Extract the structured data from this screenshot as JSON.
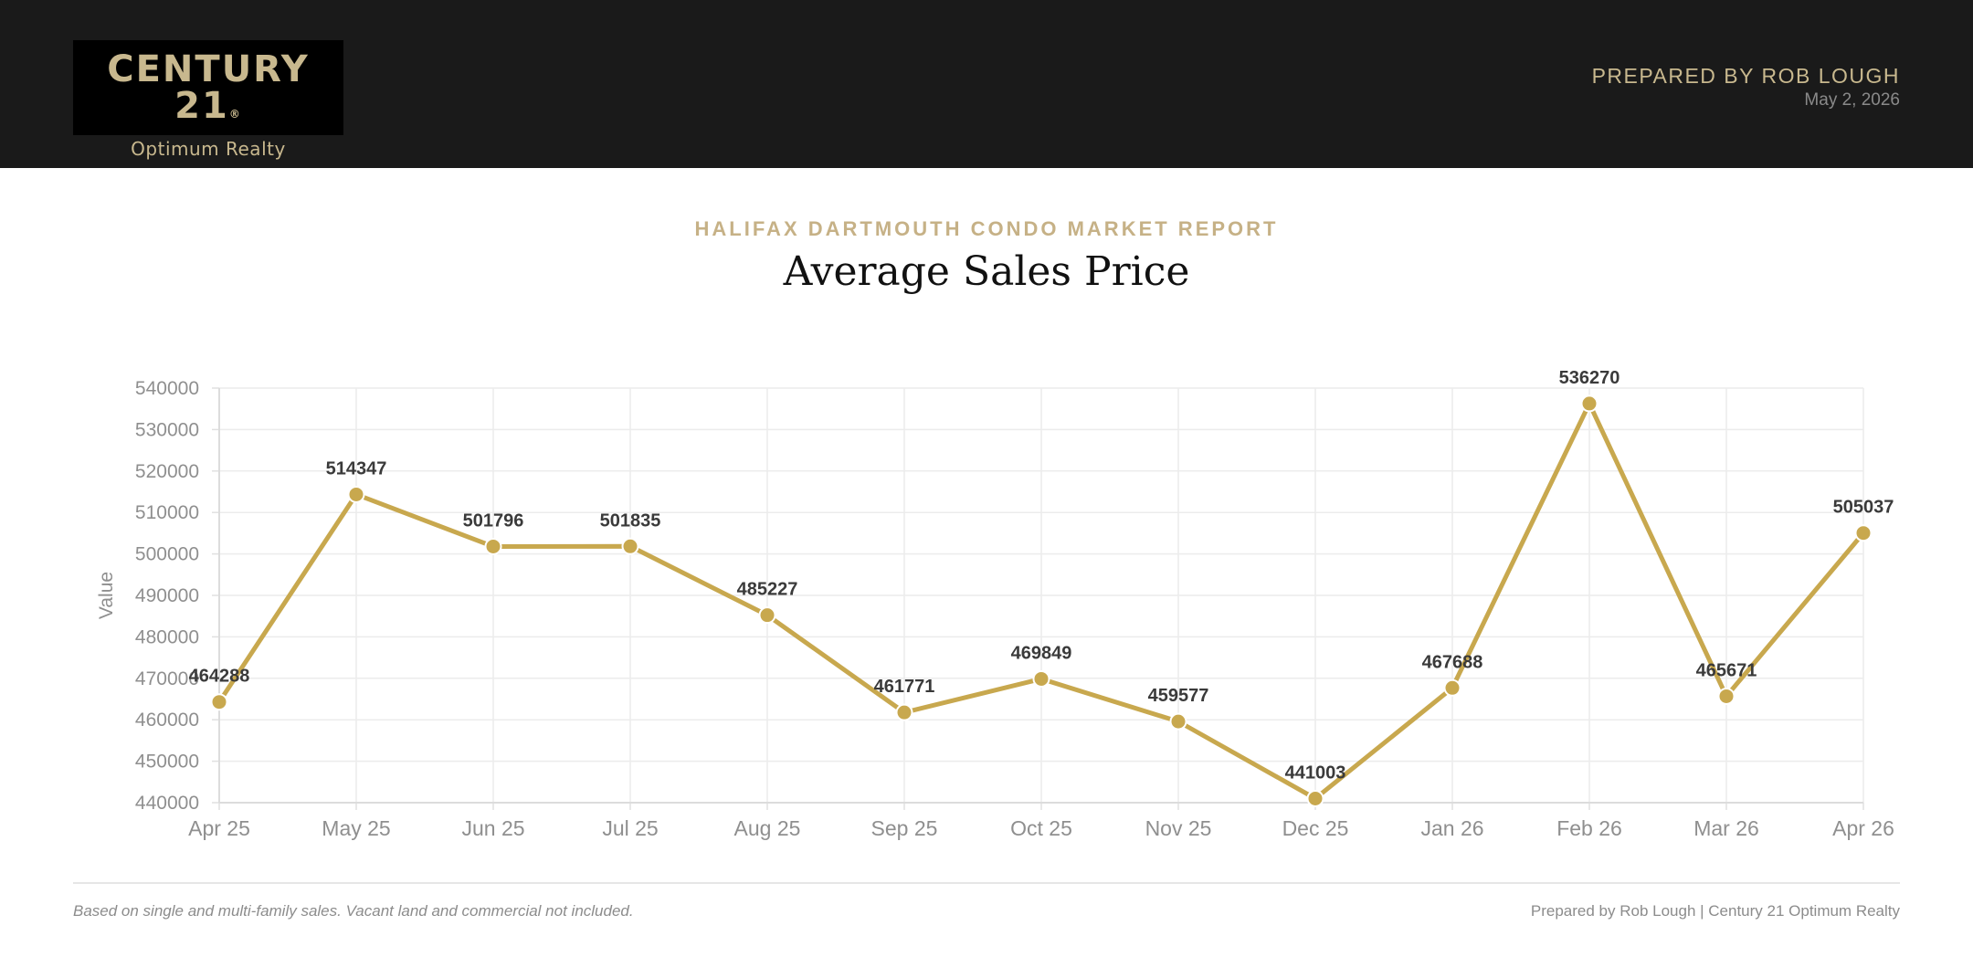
{
  "header": {
    "logo": {
      "brand": "CENTURY 21",
      "trademark": "®",
      "subtitle": "Optimum Realty"
    },
    "prepared_by": "PREPARED BY ROB LOUGH",
    "date": "May 2, 2026"
  },
  "report": {
    "kicker": "HALIFAX DARTMOUTH CONDO MARKET REPORT",
    "title": "Average Sales Price"
  },
  "footer": {
    "note": "Based on single and multi-family sales. Vacant land and commercial not included.",
    "credit": "Prepared by Rob Lough | Century 21 Optimum Realty"
  },
  "colors": {
    "header_bg": "#1a1a1a",
    "accent_gold": "#c8a84e",
    "logo_gold": "#c8b88e",
    "kicker_gold": "#c6b186"
  },
  "chart_data": {
    "type": "line",
    "title": "",
    "xlabel": "",
    "ylabel": "Value",
    "categories": [
      "Apr 25",
      "May 25",
      "Jun 25",
      "Jul 25",
      "Aug 25",
      "Sep 25",
      "Oct 25",
      "Nov 25",
      "Dec 25",
      "Jan 26",
      "Feb 26",
      "Mar 26",
      "Apr 26"
    ],
    "series": [
      {
        "values": [
          464288,
          514347,
          501796,
          501835,
          485227,
          461771,
          469849,
          459577,
          441003,
          467688,
          536270,
          465671,
          505037
        ],
        "color": "#c8a84e"
      }
    ],
    "ylim": [
      440000,
      540000
    ],
    "yticks": [
      440000,
      450000,
      460000,
      470000,
      480000,
      490000,
      500000,
      510000,
      520000,
      530000,
      540000
    ],
    "data_labels": true,
    "grid": true,
    "legend": "none"
  }
}
